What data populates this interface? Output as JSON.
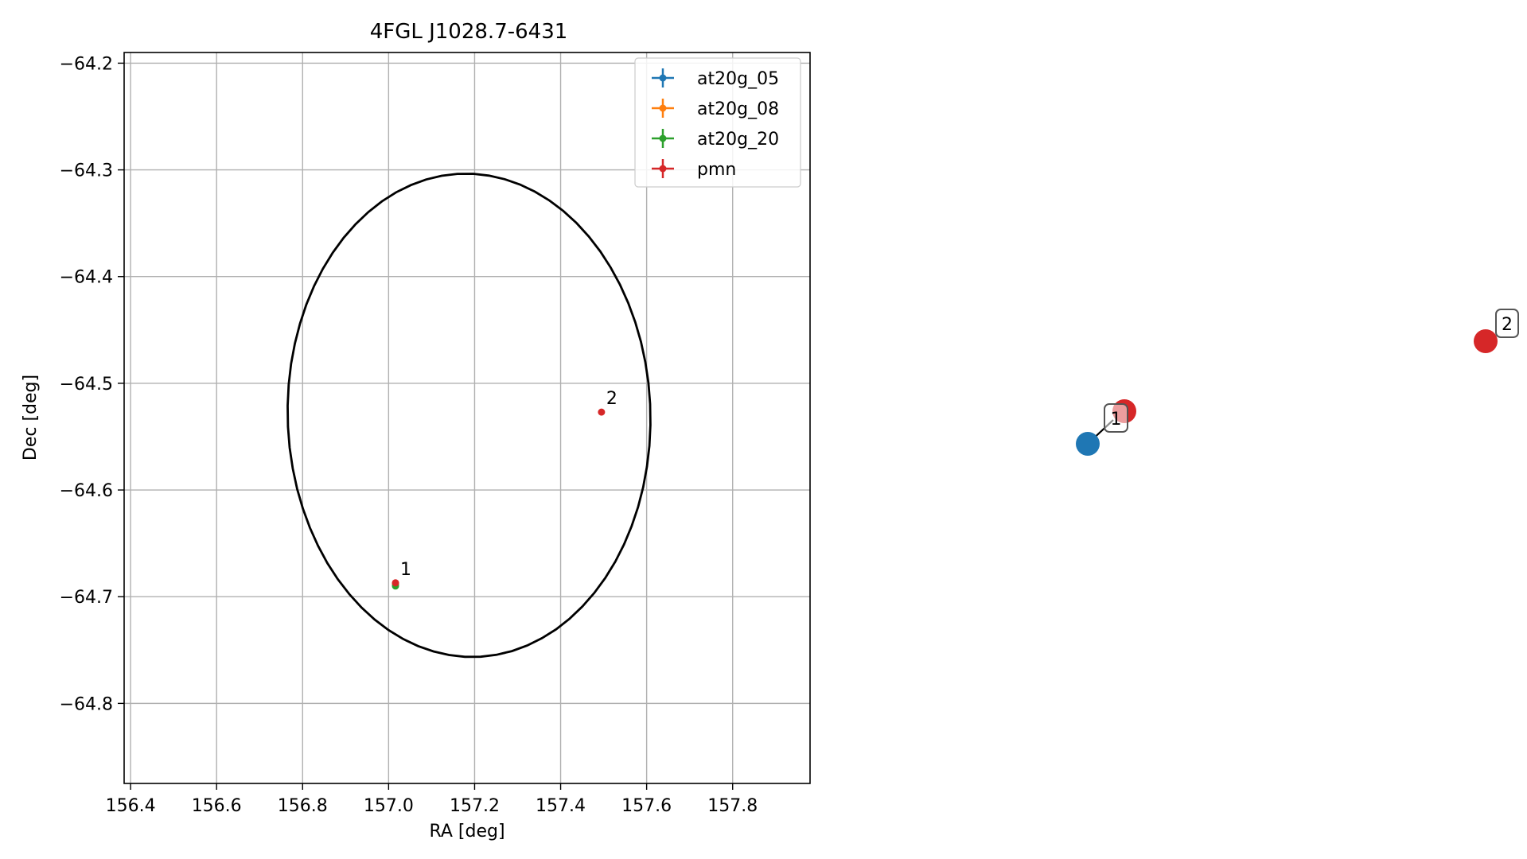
{
  "chart_data": [
    {
      "type": "scatter",
      "title": "4FGL J1028.7-6431",
      "xlabel": "RA [deg]",
      "ylabel": "Dec [deg]",
      "xlim": [
        156.385,
        157.98
      ],
      "ylim": [
        -64.875,
        -64.19
      ],
      "xticks": [
        156.4,
        156.6,
        156.8,
        157.0,
        157.2,
        157.4,
        157.6,
        157.8
      ],
      "xtick_labels": [
        "156.4",
        "156.6",
        "156.8",
        "157.0",
        "157.2",
        "157.4",
        "157.6",
        "157.8"
      ],
      "yticks": [
        -64.2,
        -64.3,
        -64.4,
        -64.5,
        -64.6,
        -64.7,
        -64.8
      ],
      "ytick_labels": [
        "−64.2",
        "−64.3",
        "−64.4",
        "−64.5",
        "−64.6",
        "−64.7",
        "−64.8"
      ],
      "grid": true,
      "legend_position": "top-right",
      "series": [
        {
          "name": "at20g_05",
          "color": "#1f77b4",
          "points": [
            {
              "x": 157.016,
              "y": -64.688
            }
          ]
        },
        {
          "name": "at20g_08",
          "color": "#ff7f0e",
          "points": [
            {
              "x": 157.016,
              "y": -64.688
            }
          ]
        },
        {
          "name": "at20g_20",
          "color": "#2ca02c",
          "points": [
            {
              "x": 157.016,
              "y": -64.69
            }
          ]
        },
        {
          "name": "pmn",
          "color": "#d62728",
          "points": [
            {
              "x": 157.016,
              "y": -64.687
            },
            {
              "x": 157.495,
              "y": -64.527
            }
          ]
        }
      ],
      "source_labels": [
        {
          "text": "1",
          "x": 157.016,
          "y": -64.687
        },
        {
          "text": "2",
          "x": 157.495,
          "y": -64.527
        }
      ],
      "ellipse": {
        "center": [
          157.187,
          -64.53
        ],
        "ra_semi_axis": 0.425,
        "dec_semi_axis": 0.228,
        "tilt_deg": 7,
        "color": "#000000"
      }
    },
    {
      "type": "scatter",
      "markers": [
        {
          "color": "#1f77b4"
        },
        {
          "color": "#d62728"
        },
        {
          "color": "#d62728"
        }
      ],
      "labels": [
        {
          "text": "1"
        },
        {
          "text": "2"
        }
      ]
    }
  ]
}
